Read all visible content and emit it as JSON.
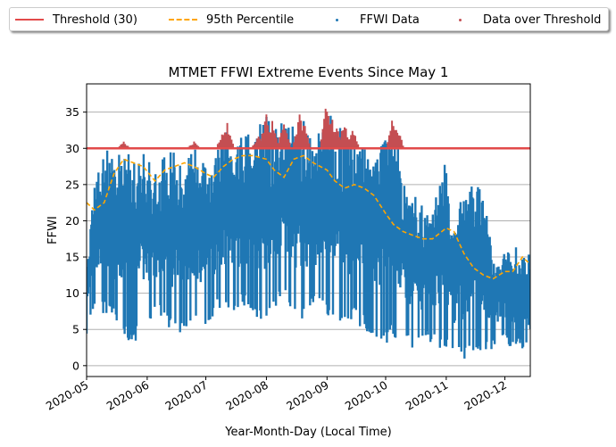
{
  "chart_data": {
    "type": "line",
    "title": "MTMET FFWI Extreme Events Since May 1",
    "xlabel": "Year-Month-Day (Local Time)",
    "ylabel": "FFWI",
    "x_range": [
      "2020-05-01",
      "2020-12-14"
    ],
    "ylim": [
      -1.5,
      38.9
    ],
    "x_ticks": [
      "2020-05",
      "2020-06",
      "2020-07",
      "2020-08",
      "2020-09",
      "2020-10",
      "2020-11",
      "2020-12"
    ],
    "y_ticks": [
      0,
      5,
      10,
      15,
      20,
      25,
      30,
      35
    ],
    "grid": "horizontal",
    "legend_placement": "top-center",
    "threshold": 30,
    "series": [
      {
        "name": "Threshold (30)",
        "kind": "hline",
        "value": 30,
        "color": "#e24a4a"
      },
      {
        "name": "95th Percentile",
        "kind": "dashed-line",
        "color": "#ffa500",
        "x": [
          "2020-05-01",
          "2020-05-05",
          "2020-05-10",
          "2020-05-15",
          "2020-05-20",
          "2020-05-25",
          "2020-05-30",
          "2020-06-05",
          "2020-06-10",
          "2020-06-15",
          "2020-06-20",
          "2020-06-25",
          "2020-07-01",
          "2020-07-05",
          "2020-07-10",
          "2020-07-15",
          "2020-07-20",
          "2020-07-25",
          "2020-08-01",
          "2020-08-05",
          "2020-08-10",
          "2020-08-15",
          "2020-08-20",
          "2020-08-25",
          "2020-09-01",
          "2020-09-05",
          "2020-09-10",
          "2020-09-15",
          "2020-09-20",
          "2020-09-25",
          "2020-10-01",
          "2020-10-05",
          "2020-10-10",
          "2020-10-15",
          "2020-10-20",
          "2020-10-25",
          "2020-11-01",
          "2020-11-05",
          "2020-11-10",
          "2020-11-15",
          "2020-11-20",
          "2020-11-25",
          "2020-12-01",
          "2020-12-05",
          "2020-12-10",
          "2020-12-14"
        ],
        "y": [
          22.5,
          21.5,
          22.5,
          26.5,
          28.5,
          28.0,
          27.5,
          25.5,
          27.0,
          27.5,
          28.0,
          27.5,
          26.5,
          26.0,
          27.5,
          28.5,
          29.0,
          29.0,
          28.5,
          27.0,
          26.0,
          28.5,
          29.0,
          28.0,
          27.0,
          25.5,
          24.5,
          25.0,
          24.5,
          23.5,
          21.0,
          19.5,
          18.5,
          18.0,
          17.5,
          17.5,
          19.0,
          18.5,
          15.5,
          13.5,
          12.5,
          12.0,
          13.0,
          13.0,
          15.0,
          14.0
        ]
      },
      {
        "name": "FFWI Data",
        "kind": "scatter-band",
        "color": "#1f77b4",
        "x": [
          "2020-05-01",
          "2020-05-05",
          "2020-05-10",
          "2020-05-15",
          "2020-05-20",
          "2020-05-25",
          "2020-05-30",
          "2020-06-05",
          "2020-06-10",
          "2020-06-15",
          "2020-06-20",
          "2020-06-25",
          "2020-07-01",
          "2020-07-05",
          "2020-07-10",
          "2020-07-15",
          "2020-07-20",
          "2020-07-25",
          "2020-08-01",
          "2020-08-05",
          "2020-08-10",
          "2020-08-15",
          "2020-08-20",
          "2020-08-25",
          "2020-09-01",
          "2020-09-05",
          "2020-09-10",
          "2020-09-15",
          "2020-09-20",
          "2020-09-25",
          "2020-10-01",
          "2020-10-05",
          "2020-10-10",
          "2020-10-15",
          "2020-10-20",
          "2020-10-25",
          "2020-11-01",
          "2020-11-05",
          "2020-11-10",
          "2020-11-15",
          "2020-11-20",
          "2020-11-25",
          "2020-12-01",
          "2020-12-05",
          "2020-12-10",
          "2020-12-14"
        ],
        "min": [
          4,
          8,
          7,
          6,
          4,
          3,
          5,
          7,
          6,
          4,
          5,
          6,
          5,
          7,
          8,
          7,
          8,
          7,
          6,
          8,
          9,
          7,
          6,
          8,
          7,
          5,
          6,
          6,
          5,
          4,
          3,
          4,
          3,
          2,
          3,
          3,
          2,
          1,
          0.5,
          2,
          2,
          2,
          3,
          2,
          2,
          1
        ],
        "max": [
          15,
          27,
          30,
          29,
          31,
          28,
          30,
          27,
          29,
          30,
          27,
          31,
          28,
          29,
          33,
          31,
          32,
          32,
          35,
          33,
          34,
          33,
          35,
          31,
          37,
          34,
          33,
          32,
          30,
          28,
          32,
          35,
          26,
          24,
          22,
          22,
          29,
          20,
          24,
          26,
          24,
          15,
          16,
          16,
          17,
          15
        ]
      },
      {
        "name": "Data over Threshold",
        "kind": "scatter-band",
        "color": "#c44e52",
        "x": [
          "2020-05-20",
          "2020-06-25",
          "2020-07-10",
          "2020-07-12",
          "2020-07-28",
          "2020-08-01",
          "2020-08-04",
          "2020-08-10",
          "2020-08-18",
          "2020-08-20",
          "2020-09-01",
          "2020-09-03",
          "2020-09-06",
          "2020-09-10",
          "2020-09-14",
          "2020-10-05",
          "2020-10-07"
        ],
        "max": [
          31,
          31,
          33,
          33.5,
          32,
          35.3,
          34,
          34,
          34.8,
          34,
          37,
          35,
          33,
          34,
          33,
          34.8,
          33
        ]
      }
    ]
  }
}
